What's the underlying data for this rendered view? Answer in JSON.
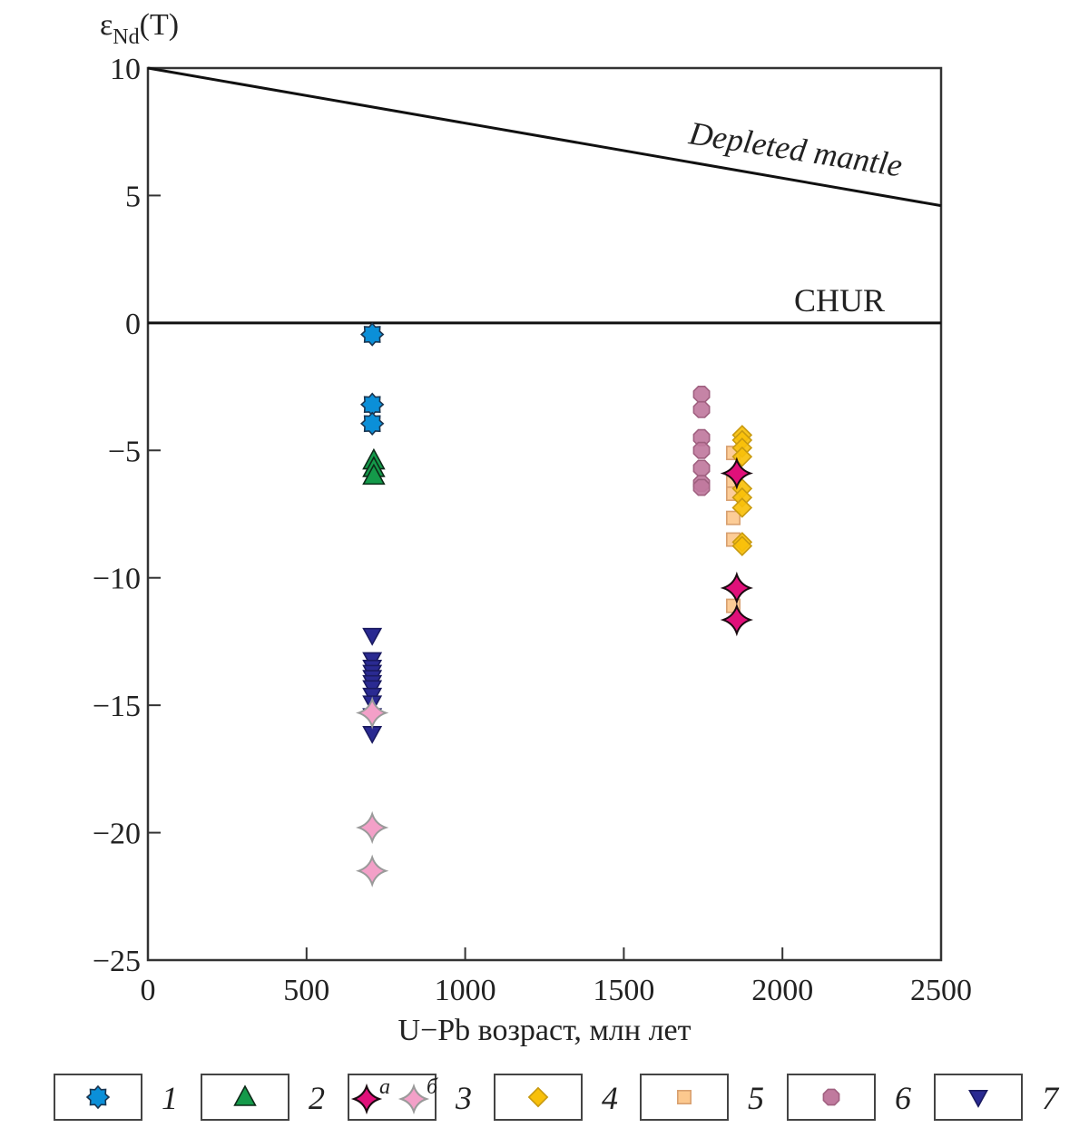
{
  "chart_data": {
    "type": "scatter",
    "title": "",
    "ylabel_main": "ε",
    "ylabel_sub": "Nd",
    "ylabel_suffix": "(T)",
    "xlabel": "U−Pb возраст, млн лет",
    "xlim": [
      0,
      2500
    ],
    "ylim": [
      -25,
      10
    ],
    "xticks": [
      0,
      500,
      1000,
      1500,
      2000,
      2500
    ],
    "xtick_labels": [
      "0",
      "500",
      "1000",
      "1500",
      "2000",
      "2500"
    ],
    "yticks": [
      10,
      5,
      0,
      -5,
      -10,
      -15,
      -20,
      -25
    ],
    "ytick_labels": [
      "10",
      "5",
      "0",
      "−5",
      "−10",
      "−15",
      "−20",
      "−25"
    ],
    "grid": false,
    "reference_lines": [
      {
        "name": "Depleted mantle",
        "label": "Depleted mantle",
        "x": [
          0,
          2500
        ],
        "y": [
          10,
          4.6
        ]
      },
      {
        "name": "CHUR",
        "label": "CHUR",
        "x": [
          0,
          2500
        ],
        "y": [
          0,
          0
        ]
      }
    ],
    "legend_placement": "bottom",
    "series": [
      {
        "name": "1",
        "marker": "star8",
        "color": "#0b8fd8",
        "edge": "#1a3550",
        "points": [
          [
            707,
            -0.45
          ],
          [
            707,
            -3.2
          ],
          [
            707,
            -3.95
          ]
        ]
      },
      {
        "name": "2",
        "marker": "triangle-up",
        "color": "#149a4a",
        "edge": "#0d2a18",
        "points": [
          [
            712,
            -5.4
          ],
          [
            712,
            -5.7
          ],
          [
            712,
            -6.0
          ]
        ]
      },
      {
        "name": "3a",
        "marker": "star4",
        "color": "#e0107a",
        "edge": "#1a0a10",
        "points": [
          [
            1856,
            -5.9
          ],
          [
            1856,
            -10.4
          ],
          [
            1856,
            -11.65
          ]
        ]
      },
      {
        "name": "3б",
        "marker": "star4",
        "color": "#f3a0c8",
        "edge": "#9a9a9a",
        "points": [
          [
            707,
            -15.3
          ],
          [
            707,
            -19.8
          ],
          [
            707,
            -21.5
          ]
        ]
      },
      {
        "name": "4",
        "marker": "diamond",
        "color": "#f8c00a",
        "edge": "#c89a10",
        "points": [
          [
            1873,
            -4.4
          ],
          [
            1873,
            -4.6
          ],
          [
            1873,
            -4.9
          ],
          [
            1873,
            -5.25
          ],
          [
            1873,
            -6.5
          ],
          [
            1873,
            -6.85
          ],
          [
            1873,
            -7.25
          ],
          [
            1873,
            -8.6
          ],
          [
            1873,
            -8.75
          ]
        ]
      },
      {
        "name": "5",
        "marker": "square",
        "color": "#fcc88e",
        "edge": "#d8a070",
        "points": [
          [
            1845,
            -5.1
          ],
          [
            1845,
            -6.2
          ],
          [
            1845,
            -6.7
          ],
          [
            1845,
            -7.65
          ],
          [
            1845,
            -8.5
          ],
          [
            1845,
            -11.1
          ]
        ]
      },
      {
        "name": "6",
        "marker": "octagon",
        "color": "#c07a9e",
        "edge": "#a06080",
        "points": [
          [
            1745,
            -2.8
          ],
          [
            1745,
            -3.4
          ],
          [
            1745,
            -4.5
          ],
          [
            1745,
            -5.0
          ],
          [
            1745,
            -5.7
          ],
          [
            1745,
            -6.3
          ],
          [
            1745,
            -6.45
          ]
        ]
      },
      {
        "name": "7",
        "marker": "triangle-down",
        "color": "#2a2a92",
        "edge": "#1a1a60",
        "points": [
          [
            707,
            -12.25
          ],
          [
            707,
            -13.2
          ],
          [
            707,
            -13.5
          ],
          [
            707,
            -13.7
          ],
          [
            707,
            -13.9
          ],
          [
            707,
            -14.1
          ],
          [
            707,
            -14.3
          ],
          [
            707,
            -14.6
          ],
          [
            707,
            -14.9
          ],
          [
            707,
            -15.4
          ],
          [
            707,
            -16.1
          ]
        ]
      }
    ],
    "legend": [
      {
        "label": "1",
        "markers": [
          {
            "series": "1"
          }
        ]
      },
      {
        "label": "2",
        "markers": [
          {
            "series": "2"
          }
        ]
      },
      {
        "label": "3",
        "markers": [
          {
            "series": "3a",
            "sub": "a"
          },
          {
            "series": "3б",
            "sub": "б"
          }
        ]
      },
      {
        "label": "4",
        "markers": [
          {
            "series": "4"
          }
        ]
      },
      {
        "label": "5",
        "markers": [
          {
            "series": "5"
          }
        ]
      },
      {
        "label": "6",
        "markers": [
          {
            "series": "6"
          }
        ]
      },
      {
        "label": "7",
        "markers": [
          {
            "series": "7"
          }
        ]
      }
    ]
  }
}
